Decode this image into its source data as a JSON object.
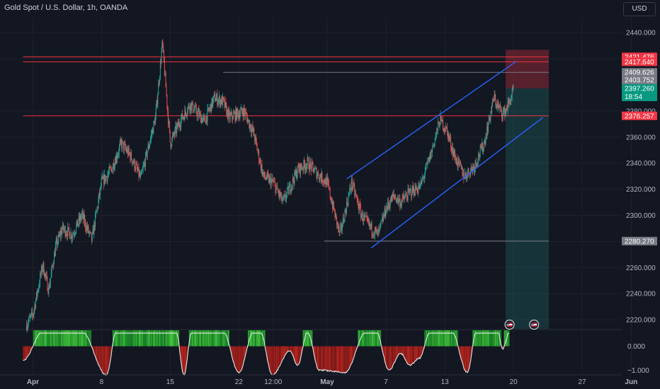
{
  "header": {
    "title": "Gold Spot / U.S. Dollar, 1h, OANDA",
    "currency": "USD"
  },
  "colors": {
    "background": "#131722",
    "grid": "#1e222d",
    "up": "#26a69a",
    "down": "#ef5350",
    "resistance_line": "#f23645",
    "channel": "#2962ff",
    "level_line": "#9598a1",
    "profit_zone": "rgba(38,166,154,0.2)",
    "loss_zone": "rgba(242,54,69,0.3)"
  },
  "chart_data": {
    "type": "candlestick",
    "symbol": "Gold Spot / U.S. Dollar",
    "interval": "1h",
    "y_ticks": [
      2220,
      2240,
      2260,
      2280,
      2300,
      2320,
      2340,
      2360,
      2380,
      2420,
      2440
    ],
    "ylim": [
      2213,
      2452
    ],
    "x_ticks": [
      "Apr",
      "8",
      "15",
      "22",
      "12:00",
      "May",
      "7",
      "13",
      "20",
      "27",
      "Jun"
    ],
    "x_tick_days": [
      1,
      8,
      15,
      22,
      25.5,
      31,
      37,
      43,
      50,
      57,
      62
    ],
    "x_unit": "days since Mar 31 (Apr 1 = 1)",
    "price_path": [
      [
        0.3,
        2216
      ],
      [
        1.0,
        2224
      ],
      [
        2.0,
        2262
      ],
      [
        2.6,
        2243
      ],
      [
        3.3,
        2275
      ],
      [
        4.0,
        2290
      ],
      [
        5.0,
        2285
      ],
      [
        6.0,
        2300
      ],
      [
        7.0,
        2281
      ],
      [
        8.0,
        2325
      ],
      [
        9.0,
        2335
      ],
      [
        10.0,
        2355
      ],
      [
        11.0,
        2345
      ],
      [
        12.0,
        2328
      ],
      [
        13.5,
        2375
      ],
      [
        14.2,
        2432
      ],
      [
        15.0,
        2355
      ],
      [
        16.0,
        2372
      ],
      [
        17.0,
        2385
      ],
      [
        18.5,
        2372
      ],
      [
        19.5,
        2390
      ],
      [
        20.4,
        2387
      ],
      [
        21.0,
        2375
      ],
      [
        22.5,
        2380
      ],
      [
        23.5,
        2363
      ],
      [
        24.5,
        2330
      ],
      [
        25.5,
        2325
      ],
      [
        26.5,
        2310
      ],
      [
        27.0,
        2318
      ],
      [
        28.0,
        2335
      ],
      [
        29.0,
        2340
      ],
      [
        30.0,
        2332
      ],
      [
        31.0,
        2325
      ],
      [
        32.3,
        2285
      ],
      [
        33.5,
        2325
      ],
      [
        34.5,
        2300
      ],
      [
        35.5,
        2290
      ],
      [
        36.2,
        2285
      ],
      [
        37.0,
        2305
      ],
      [
        37.8,
        2315
      ],
      [
        38.5,
        2310
      ],
      [
        39.5,
        2318
      ],
      [
        40.5,
        2322
      ],
      [
        41.5,
        2345
      ],
      [
        42.5,
        2373
      ],
      [
        43.2,
        2365
      ],
      [
        44.0,
        2345
      ],
      [
        45.0,
        2330
      ],
      [
        46.0,
        2338
      ],
      [
        47.0,
        2355
      ],
      [
        48.0,
        2390
      ],
      [
        48.5,
        2382
      ],
      [
        49.0,
        2378
      ],
      [
        49.5,
        2385
      ],
      [
        50.0,
        2396
      ]
    ],
    "price_labels": [
      {
        "value": 2421.476,
        "text": "2421.476",
        "color": "#f23645"
      },
      {
        "value": 2417.64,
        "text": "2417.640",
        "color": "#f23645"
      },
      {
        "value": 2409.626,
        "text": "2409.626",
        "color": "#787b86"
      },
      {
        "value": 2403.752,
        "text": "2403.752",
        "color": "#787b86"
      },
      {
        "value": 2397.26,
        "text": "2397.260",
        "sub": "18:54",
        "color": "#089981"
      },
      {
        "value": 2376.257,
        "text": "2376.257",
        "color": "#f23645"
      },
      {
        "value": 2280.27,
        "text": "2280.270",
        "color": "#787b86"
      }
    ],
    "horizontal_lines": [
      {
        "value": 2417.64,
        "color": "#f23645",
        "x_from": 0,
        "x_to": 53.6
      },
      {
        "value": 2421.476,
        "color": "#f23645",
        "x_from": 0,
        "x_to": 53.6
      },
      {
        "value": 2376.257,
        "color": "#f23645",
        "x_from": 0,
        "x_to": 53.6
      },
      {
        "value": 2409.626,
        "color": "#787b86",
        "x_from": 20.4,
        "x_to": 53.6
      },
      {
        "value": 2280.27,
        "color": "#787b86",
        "x_from": 30.7,
        "x_to": 53.6
      }
    ],
    "channel_lines": [
      {
        "x1": 33.0,
        "y1": 2328,
        "x2": 50.3,
        "y2": 2418
      },
      {
        "x1": 35.5,
        "y1": 2275,
        "x2": 53.0,
        "y2": 2375
      }
    ],
    "position": {
      "x_from": 49.2,
      "x_to": 53.6,
      "entry": 2397.26,
      "stop": 2421.476,
      "target": 2213
    },
    "indicator": {
      "y_ticks": [
        0.0,
        -1.0
      ],
      "y_tick_labels": [
        "0.000",
        "−1.000"
      ],
      "ylim": [
        -1.2,
        0.7
      ],
      "cycle_turns": [
        [
          0,
          -0.6
        ],
        [
          2,
          0.6
        ],
        [
          6,
          0.6
        ],
        [
          8.5,
          -1.2
        ],
        [
          9.5,
          0.6
        ],
        [
          15.6,
          0.6
        ],
        [
          16.4,
          -1.2
        ],
        [
          17.2,
          0.6
        ],
        [
          20.4,
          0.6
        ],
        [
          22.0,
          -1.1
        ],
        [
          23.5,
          0.6
        ],
        [
          24.2,
          0.6
        ],
        [
          25.4,
          -1.2
        ],
        [
          27.2,
          -0.2
        ],
        [
          28.0,
          -0.8
        ],
        [
          29.0,
          0.6
        ],
        [
          30.2,
          -1.0
        ],
        [
          32.8,
          -1.1
        ],
        [
          35.0,
          0.6
        ],
        [
          36.0,
          0.6
        ],
        [
          37.3,
          -1.0
        ],
        [
          38.5,
          -0.3
        ],
        [
          39.4,
          -0.8
        ],
        [
          40.4,
          -0.5
        ],
        [
          41.5,
          0.6
        ],
        [
          43.7,
          0.6
        ],
        [
          45.3,
          -1.1
        ],
        [
          46.2,
          0.6
        ],
        [
          48.4,
          0.6
        ],
        [
          48.9,
          -0.1
        ],
        [
          49.6,
          0.6
        ]
      ]
    },
    "event_markers": [
      {
        "x": 49.6
      },
      {
        "x": 52.1
      }
    ]
  }
}
